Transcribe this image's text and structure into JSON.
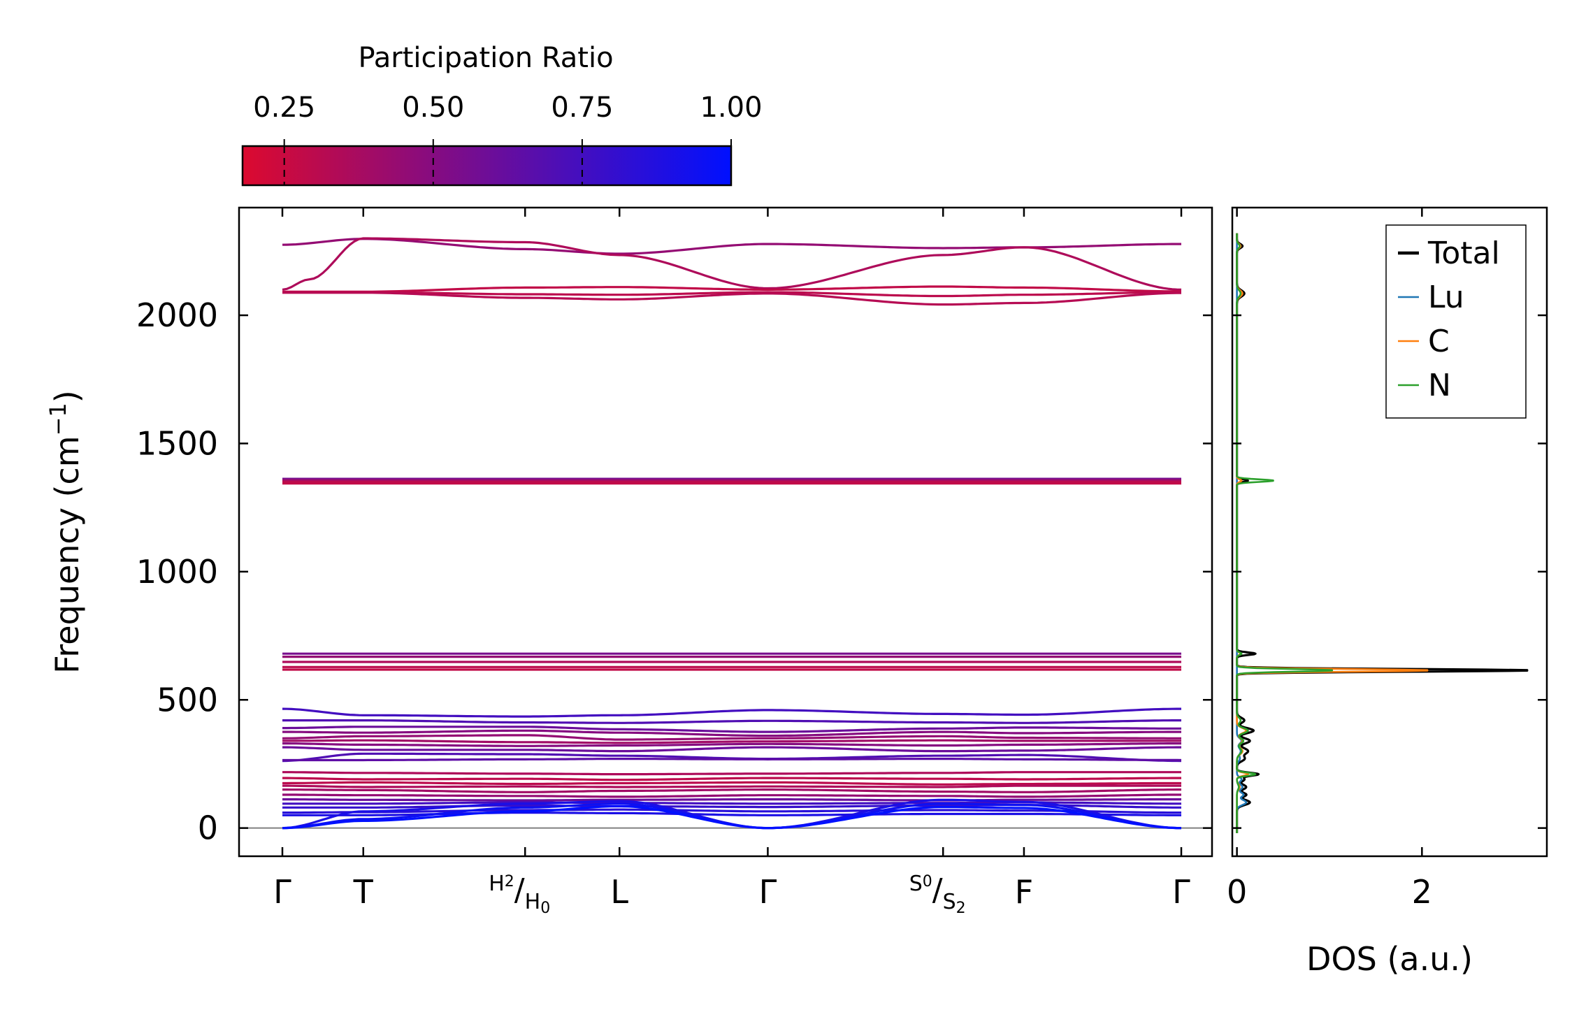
{
  "colors": {
    "pr_low": "#dc0a2f",
    "pr_high": "#0010ff",
    "total": "#000000",
    "lu": "#1f77b4",
    "c": "#ff7f0e",
    "n": "#2ca02c",
    "zero_line": "#808080"
  },
  "colorbar": {
    "title": "Participation Ratio",
    "range": [
      0.18,
      1.0
    ],
    "ticks": [
      {
        "value": 0.25,
        "label": "0.25"
      },
      {
        "value": 0.5,
        "label": "0.50"
      },
      {
        "value": 0.75,
        "label": "0.75"
      },
      {
        "value": 1.0,
        "label": "1.00"
      }
    ]
  },
  "chart_data": [
    {
      "type": "line",
      "name": "phonon_band_structure",
      "ylabel_main": "Frequency (cm",
      "ylabel_sup": "−1",
      "ylabel_close": ")",
      "ylim": [
        -110,
        2420
      ],
      "yticks": [
        {
          "value": 0,
          "label": "0"
        },
        {
          "value": 500,
          "label": "500"
        },
        {
          "value": 1000,
          "label": "1000"
        },
        {
          "value": 1500,
          "label": "1500"
        },
        {
          "value": 2000,
          "label": "2000"
        }
      ],
      "kpath": {
        "length": 100,
        "ticks": [
          0,
          9,
          27,
          37.5,
          54,
          73.5,
          82.5,
          100
        ],
        "labels": [
          {
            "pos": 0,
            "text": "Γ"
          },
          {
            "pos": 9,
            "text": "T"
          },
          {
            "pos": 27,
            "top": "H",
            "topsub": "2",
            "bottom": "H",
            "bottomsub": "0"
          },
          {
            "pos": 37.5,
            "text": "L"
          },
          {
            "pos": 54,
            "text": "Γ"
          },
          {
            "pos": 73.5,
            "top": "S",
            "topsub": "0",
            "bottom": "S",
            "bottomsub": "2"
          },
          {
            "pos": 82.5,
            "text": "F"
          },
          {
            "pos": 100,
            "text": "Γ"
          }
        ]
      },
      "bands": [
        {
          "k": [
            0,
            9,
            27,
            37.5,
            54,
            73.5,
            82.5,
            100
          ],
          "f": [
            2275,
            2298,
            2258,
            2240,
            2278,
            2262,
            2265,
            2278
          ],
          "pr": 0.45
        },
        {
          "k": [
            0,
            3,
            9,
            27,
            37.5,
            54,
            73.5,
            82.5,
            100
          ],
          "f": [
            2100,
            2140,
            2300,
            2285,
            2235,
            2105,
            2235,
            2265,
            2100
          ],
          "pr": 0.35
        },
        {
          "k": [
            0,
            9,
            27,
            37.5,
            54,
            73.5,
            82.5,
            100
          ],
          "f": [
            2092,
            2092,
            2108,
            2110,
            2100,
            2112,
            2108,
            2093
          ],
          "pr": 0.28
        },
        {
          "k": [
            0,
            9,
            27,
            37.5,
            54,
            73.5,
            82.5,
            100
          ],
          "f": [
            2090,
            2090,
            2082,
            2080,
            2090,
            2075,
            2080,
            2090
          ],
          "pr": 0.3
        },
        {
          "k": [
            0,
            9,
            27,
            37.5,
            54,
            73.5,
            82.5,
            100
          ],
          "f": [
            2088,
            2088,
            2068,
            2062,
            2085,
            2042,
            2048,
            2087
          ],
          "pr": 0.32
        },
        {
          "k": [
            0,
            100
          ],
          "f": [
            1362,
            1362
          ],
          "pr": 0.55
        },
        {
          "k": [
            0,
            100
          ],
          "f": [
            1356,
            1356
          ],
          "pr": 0.4
        },
        {
          "k": [
            0,
            100
          ],
          "f": [
            1350,
            1350
          ],
          "pr": 0.3
        },
        {
          "k": [
            0,
            100
          ],
          "f": [
            1344,
            1344
          ],
          "pr": 0.28
        },
        {
          "k": [
            0,
            100
          ],
          "f": [
            680,
            680
          ],
          "pr": 0.55
        },
        {
          "k": [
            0,
            100
          ],
          "f": [
            668,
            668
          ],
          "pr": 0.45
        },
        {
          "k": [
            0,
            100
          ],
          "f": [
            648,
            648
          ],
          "pr": 0.35
        },
        {
          "k": [
            0,
            100
          ],
          "f": [
            628,
            628
          ],
          "pr": 0.3
        },
        {
          "k": [
            0,
            100
          ],
          "f": [
            618,
            618
          ],
          "pr": 0.28
        },
        {
          "k": [
            0,
            9,
            27,
            37.5,
            54,
            73.5,
            82.5,
            100
          ],
          "f": [
            465,
            440,
            435,
            440,
            460,
            445,
            442,
            465
          ],
          "pr": 0.75
        },
        {
          "k": [
            0,
            9,
            27,
            37.5,
            54,
            73.5,
            82.5,
            100
          ],
          "f": [
            420,
            420,
            412,
            410,
            418,
            412,
            410,
            420
          ],
          "pr": 0.7
        },
        {
          "k": [
            0,
            9,
            27,
            37.5,
            54,
            73.5,
            82.5,
            100
          ],
          "f": [
            390,
            395,
            395,
            385,
            375,
            388,
            392,
            388
          ],
          "pr": 0.6
        },
        {
          "k": [
            0,
            9,
            27,
            37.5,
            54,
            73.5,
            82.5,
            100
          ],
          "f": [
            375,
            372,
            380,
            372,
            360,
            375,
            370,
            375
          ],
          "pr": 0.5
        },
        {
          "k": [
            0,
            9,
            27,
            37.5,
            54,
            73.5,
            82.5,
            100
          ],
          "f": [
            350,
            358,
            362,
            345,
            350,
            358,
            352,
            350
          ],
          "pr": 0.45
        },
        {
          "k": [
            0,
            9,
            27,
            37.5,
            54,
            73.5,
            82.5,
            100
          ],
          "f": [
            340,
            342,
            335,
            332,
            338,
            342,
            340,
            340
          ],
          "pr": 0.4
        },
        {
          "k": [
            0,
            9,
            27,
            37.5,
            54,
            73.5,
            82.5,
            100
          ],
          "f": [
            330,
            325,
            320,
            322,
            328,
            322,
            325,
            330
          ],
          "pr": 0.5
        },
        {
          "k": [
            0,
            9,
            27,
            37.5,
            54,
            73.5,
            82.5,
            100
          ],
          "f": [
            315,
            305,
            305,
            300,
            315,
            300,
            302,
            315
          ],
          "pr": 0.6
        },
        {
          "k": [
            0,
            9,
            27,
            37.5,
            54,
            73.5,
            82.5,
            100
          ],
          "f": [
            262,
            290,
            288,
            282,
            270,
            282,
            285,
            262
          ],
          "pr": 0.7
        },
        {
          "k": [
            0,
            9,
            27,
            37.5,
            54,
            73.5,
            82.5,
            100
          ],
          "f": [
            265,
            265,
            268,
            270,
            268,
            270,
            268,
            265
          ],
          "pr": 0.65
        },
        {
          "k": [
            0,
            9,
            27,
            37.5,
            54,
            73.5,
            82.5,
            100
          ],
          "f": [
            218,
            215,
            212,
            210,
            212,
            215,
            218,
            218
          ],
          "pr": 0.35
        },
        {
          "k": [
            0,
            9,
            27,
            37.5,
            54,
            73.5,
            82.5,
            100
          ],
          "f": [
            195,
            190,
            192,
            188,
            195,
            192,
            190,
            195
          ],
          "pr": 0.3
        },
        {
          "k": [
            0,
            9,
            27,
            37.5,
            54,
            73.5,
            82.5,
            100
          ],
          "f": [
            175,
            178,
            172,
            175,
            178,
            170,
            172,
            175
          ],
          "pr": 0.3
        },
        {
          "k": [
            0,
            9,
            27,
            37.5,
            54,
            73.5,
            82.5,
            100
          ],
          "f": [
            165,
            160,
            162,
            160,
            162,
            160,
            165,
            165
          ],
          "pr": 0.35
        },
        {
          "k": [
            0,
            9,
            27,
            37.5,
            54,
            73.5,
            82.5,
            100
          ],
          "f": [
            150,
            148,
            140,
            145,
            150,
            142,
            140,
            150
          ],
          "pr": 0.4
        },
        {
          "k": [
            0,
            9,
            27,
            37.5,
            54,
            73.5,
            82.5,
            100
          ],
          "f": [
            130,
            128,
            125,
            122,
            128,
            125,
            122,
            130
          ],
          "pr": 0.45
        },
        {
          "k": [
            0,
            9,
            27,
            37.5,
            54,
            73.5,
            82.5,
            100
          ],
          "f": [
            112,
            110,
            108,
            110,
            112,
            108,
            110,
            112
          ],
          "pr": 0.6
        },
        {
          "k": [
            0,
            9,
            27,
            37.5,
            54,
            73.5,
            82.5,
            100
          ],
          "f": [
            95,
            95,
            100,
            98,
            95,
            98,
            100,
            95
          ],
          "pr": 0.75
        },
        {
          "k": [
            0,
            9,
            27,
            37.5,
            54,
            73.5,
            82.5,
            100
          ],
          "f": [
            80,
            80,
            88,
            85,
            82,
            88,
            90,
            80
          ],
          "pr": 0.8
        },
        {
          "k": [
            0,
            9,
            27,
            37.5,
            54,
            73.5,
            82.5,
            100
          ],
          "f": [
            60,
            62,
            70,
            72,
            65,
            70,
            68,
            60
          ],
          "pr": 0.85
        },
        {
          "k": [
            0,
            9,
            27,
            37.5,
            54,
            73.5,
            82.5,
            100
          ],
          "f": [
            50,
            50,
            60,
            58,
            50,
            55,
            55,
            50
          ],
          "pr": 0.9
        },
        {
          "k": [
            0,
            9,
            27,
            37.5,
            54,
            73.5,
            82.5,
            100
          ],
          "f": [
            0,
            65,
            95,
            105,
            0,
            110,
            102,
            0
          ],
          "pr": 0.9
        },
        {
          "k": [
            0,
            9,
            27,
            37.5,
            54,
            73.5,
            82.5,
            100
          ],
          "f": [
            0,
            35,
            80,
            95,
            0,
            95,
            90,
            0
          ],
          "pr": 0.95
        },
        {
          "k": [
            0,
            9,
            27,
            37.5,
            54,
            73.5,
            82.5,
            100
          ],
          "f": [
            0,
            28,
            65,
            85,
            0,
            82,
            78,
            0
          ],
          "pr": 1.0
        }
      ]
    },
    {
      "type": "line",
      "name": "phonon_dos",
      "xlabel": "DOS (a.u.)",
      "xlim": [
        -0.05,
        3.35
      ],
      "xticks": [
        {
          "value": 0,
          "label": "0"
        },
        {
          "value": 2,
          "label": "2"
        }
      ],
      "ylim": [
        -110,
        2420
      ],
      "legend": {
        "position": "top-right"
      },
      "series": [
        {
          "name": "Total",
          "color_key": "total",
          "legend_style": "thick",
          "peaks": [
            [
              100,
              0.14,
              10
            ],
            [
              130,
              0.1,
              8
            ],
            [
              160,
              0.1,
              10
            ],
            [
              190,
              0.08,
              8
            ],
            [
              210,
              0.23,
              6
            ],
            [
              270,
              0.08,
              10
            ],
            [
              300,
              0.12,
              12
            ],
            [
              340,
              0.14,
              10
            ],
            [
              380,
              0.18,
              10
            ],
            [
              420,
              0.08,
              10
            ],
            [
              615,
              3.2,
              5
            ],
            [
              680,
              0.2,
              5
            ],
            [
              1355,
              0.12,
              5
            ],
            [
              2085,
              0.08,
              12
            ],
            [
              2270,
              0.06,
              8
            ]
          ]
        },
        {
          "name": "Lu",
          "color_key": "lu",
          "legend_style": "thin",
          "peaks": [
            [
              100,
              0.1,
              10
            ],
            [
              130,
              0.07,
              8
            ],
            [
              160,
              0.06,
              10
            ],
            [
              190,
              0.05,
              8
            ],
            [
              270,
              0.03,
              10
            ],
            [
              300,
              0.04,
              12
            ],
            [
              340,
              0.05,
              10
            ]
          ]
        },
        {
          "name": "C",
          "color_key": "c",
          "legend_style": "thin",
          "peaks": [
            [
              160,
              0.03,
              10
            ],
            [
              210,
              0.12,
              6
            ],
            [
              300,
              0.06,
              12
            ],
            [
              340,
              0.06,
              10
            ],
            [
              380,
              0.1,
              10
            ],
            [
              615,
              2.1,
              5
            ],
            [
              680,
              0.04,
              5
            ],
            [
              1355,
              0.05,
              5
            ],
            [
              2085,
              0.06,
              12
            ],
            [
              2270,
              0.04,
              8
            ]
          ]
        },
        {
          "name": "N",
          "color_key": "n",
          "legend_style": "thin",
          "peaks": [
            [
              160,
              0.02,
              10
            ],
            [
              210,
              0.2,
              6
            ],
            [
              300,
              0.05,
              12
            ],
            [
              340,
              0.07,
              10
            ],
            [
              380,
              0.12,
              10
            ],
            [
              420,
              0.04,
              10
            ],
            [
              615,
              1.05,
              5
            ],
            [
              680,
              0.05,
              5
            ],
            [
              1355,
              0.4,
              5
            ],
            [
              2085,
              0.04,
              12
            ],
            [
              2270,
              0.03,
              8
            ]
          ]
        }
      ]
    }
  ]
}
